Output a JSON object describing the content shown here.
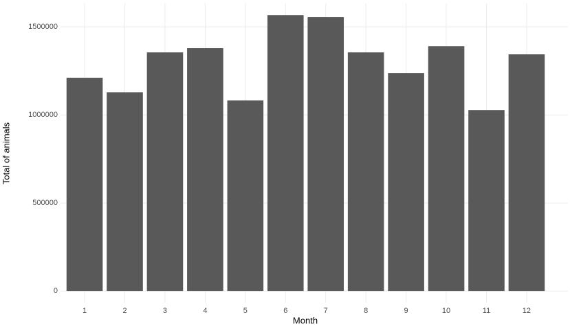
{
  "chart_data": {
    "type": "bar",
    "x_label": "Month",
    "y_label": "Total of animals",
    "categories": [
      "1",
      "2",
      "3",
      "4",
      "5",
      "6",
      "7",
      "8",
      "9",
      "10",
      "11",
      "12"
    ],
    "values": [
      1211000,
      1128000,
      1355000,
      1379000,
      1082000,
      1566000,
      1555000,
      1355000,
      1238000,
      1390000,
      1027000,
      1344000
    ],
    "color": "#595959",
    "ylim": [
      -66000,
      1633000
    ],
    "yticks": [
      0,
      500000,
      1000000,
      1500000
    ],
    "grid": true
  }
}
